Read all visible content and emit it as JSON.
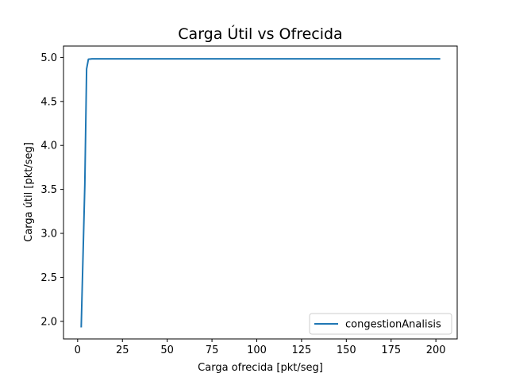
{
  "chart_data": {
    "type": "line",
    "title": "Carga Útil vs Ofrecida",
    "xlabel": "Carga ofrecida [pkt/seg]",
    "ylabel": "Carga útil [pkt/seg]",
    "xlim": [
      -7.9,
      211.9
    ],
    "ylim": [
      1.8,
      5.13
    ],
    "xticks": [
      0,
      25,
      50,
      75,
      100,
      125,
      150,
      175,
      200
    ],
    "yticks": [
      2.0,
      2.5,
      3.0,
      3.5,
      4.0,
      4.5,
      5.0
    ],
    "xtick_labels": [
      "0",
      "25",
      "50",
      "75",
      "100",
      "125",
      "150",
      "175",
      "200"
    ],
    "ytick_labels": [
      "2.0",
      "2.5",
      "3.0",
      "3.5",
      "4.0",
      "4.5",
      "5.0"
    ],
    "grid": false,
    "legend_position": "lower-right",
    "series": [
      {
        "name": "congestionAnalisis",
        "color": "#1f77b4",
        "x": [
          2,
          4,
          5,
          6,
          8,
          10,
          25,
          50,
          75,
          100,
          125,
          150,
          175,
          202
        ],
        "y": [
          1.94,
          3.55,
          4.87,
          4.98,
          4.985,
          4.985,
          4.985,
          4.985,
          4.985,
          4.985,
          4.985,
          4.985,
          4.985,
          4.985
        ]
      }
    ]
  }
}
